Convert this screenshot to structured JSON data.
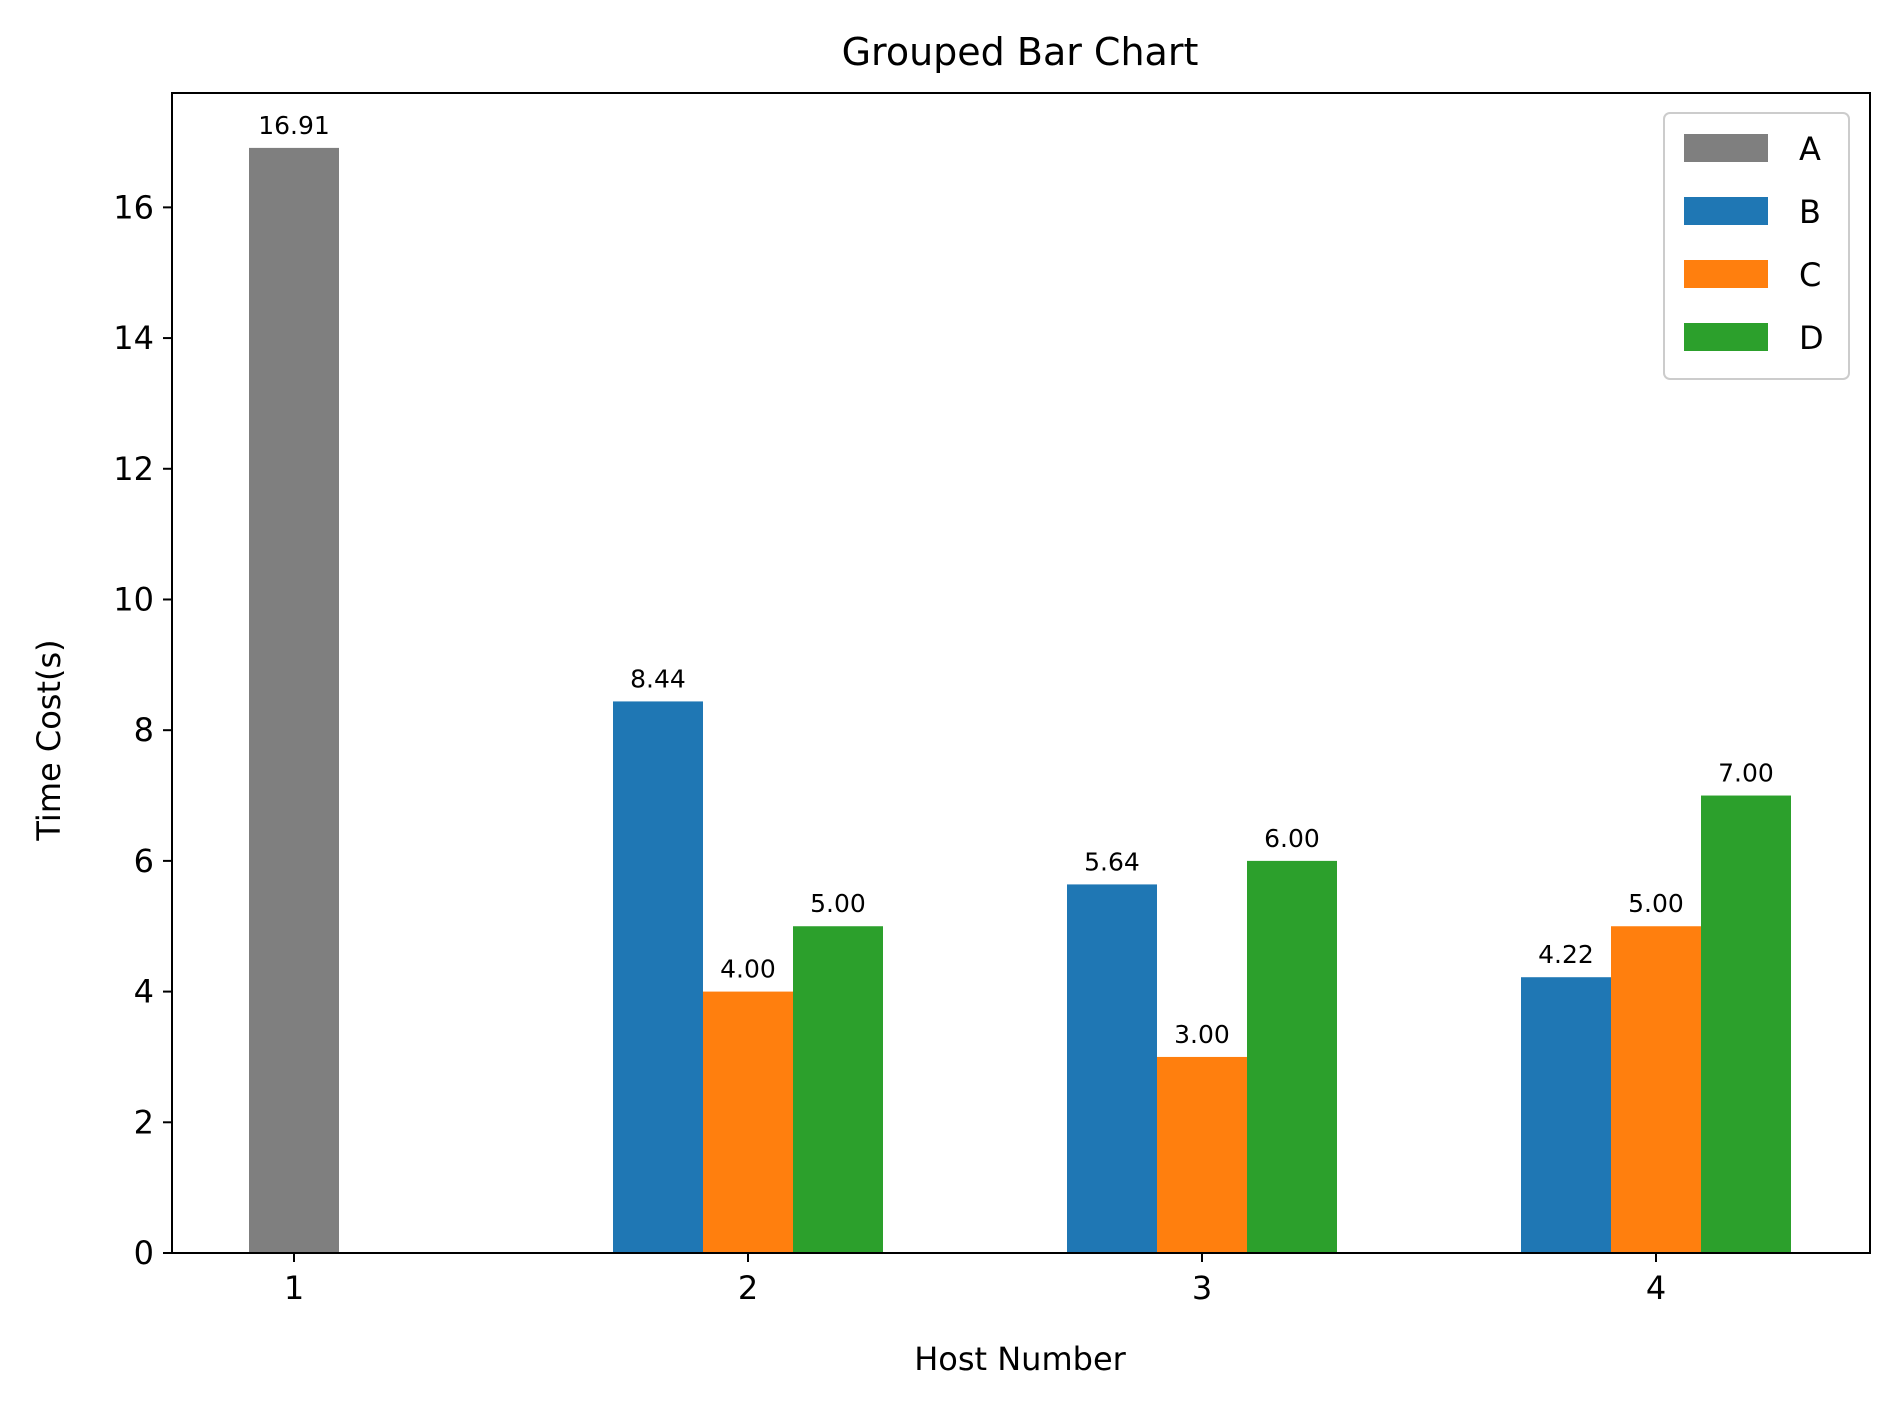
{
  "chart_data": {
    "type": "bar",
    "title": "Grouped Bar Chart",
    "xlabel": "Host Number",
    "ylabel": "Time Cost(s)",
    "categories": [
      "1",
      "2",
      "3",
      "4"
    ],
    "ylim": [
      0,
      17.75
    ],
    "yticks": [
      "0",
      "2",
      "4",
      "6",
      "8",
      "10",
      "12",
      "14",
      "16"
    ],
    "legend_position": "top-right",
    "series": [
      {
        "name": "A",
        "color": "#7f7f7f",
        "values": [
          16.91,
          null,
          null,
          null
        ],
        "labels": [
          "16.91",
          "",
          "",
          ""
        ]
      },
      {
        "name": "B",
        "color": "#1f77b4",
        "values": [
          null,
          8.44,
          5.64,
          4.22
        ],
        "labels": [
          "",
          "8.44",
          "5.64",
          "4.22"
        ]
      },
      {
        "name": "C",
        "color": "#ff7f0e",
        "values": [
          null,
          4.0,
          3.0,
          5.0
        ],
        "labels": [
          "",
          "4.00",
          "3.00",
          "5.00"
        ]
      },
      {
        "name": "D",
        "color": "#2ca02c",
        "values": [
          null,
          5.0,
          6.0,
          7.0
        ],
        "labels": [
          "",
          "5.00",
          "6.00",
          "7.00"
        ]
      }
    ]
  }
}
